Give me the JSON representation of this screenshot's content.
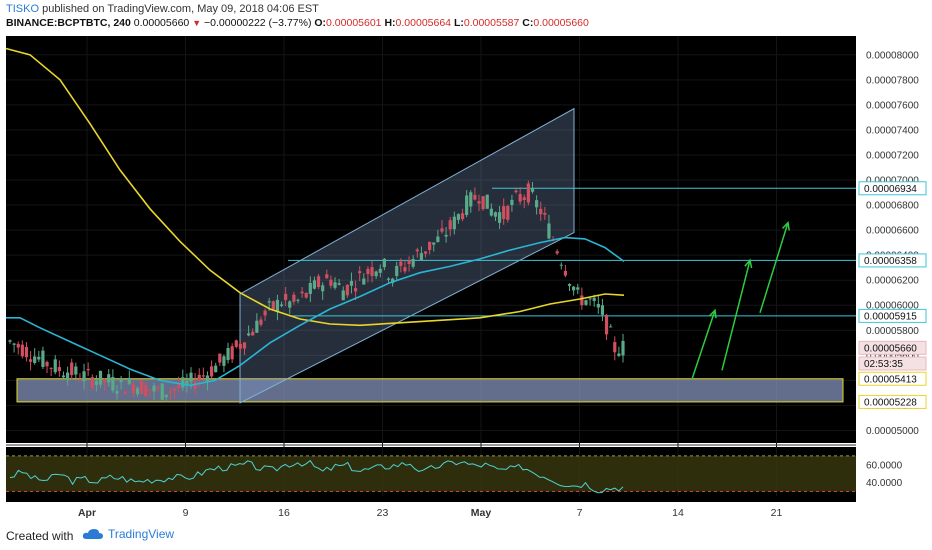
{
  "header": {
    "author": "TISKO",
    "published_text": "published on TradingView.com, May 09, 2018 04:06 EST",
    "symbol": "BINANCE:BCPTBTC, 240",
    "last_price": "0.00005660",
    "change": "−0.00000222 (−3.77%)",
    "o_label": "O:",
    "o_value": "0.00005601",
    "h_label": "H:",
    "h_value": "0.00005664",
    "l_label": "L:",
    "l_value": "0.00005587",
    "c_label": "C:",
    "c_value": "0.00005660"
  },
  "footer": {
    "created_with": "Created with",
    "brand": "TradingView"
  },
  "colors": {
    "background": "#000000",
    "up_candle": "#5aaa8a",
    "down_candle": "#d14f5e",
    "ma_fast": "#29b6d4",
    "ma_slow": "#e8d62a",
    "channel": "#7fb3d8",
    "level_line": "#3ec7d6",
    "zone": "#8c9cc8",
    "arrow": "#2ecc40",
    "rsi": "#4fd2d2"
  },
  "chart_data": {
    "type": "candlestick",
    "y_axis_ticks": [
      "0.00008000",
      "0.00007800",
      "0.00007600",
      "0.00007400",
      "0.00007200",
      "0.00007000",
      "0.00006800",
      "0.00006600",
      "0.00006400",
      "0.00006200",
      "0.00006000",
      "0.00005800",
      "0.00005600",
      "0.00005400",
      "0.00005200",
      "0.00005000"
    ],
    "ylim": [
      4.9e-05,
      8.15e-05
    ],
    "x_axis_ticks": [
      "Apr",
      "9",
      "16",
      "23",
      "May",
      "7",
      "14",
      "21"
    ],
    "price_labels": [
      {
        "label": "0.00006934",
        "value": 6.934e-05
      },
      {
        "label": "0.00006358",
        "value": 6.358e-05
      },
      {
        "label": "0.00005915",
        "value": 5.915e-05
      },
      {
        "label": "0.00005660",
        "value": 5.66e-05
      },
      {
        "label": "02:53:35",
        "value": 5.535e-05
      },
      {
        "label": "0.00005413",
        "value": 5.413e-05
      },
      {
        "label": "0.00005228",
        "value": 5.228e-05
      }
    ],
    "support_zone": [
      5.228e-05,
      5.413e-05
    ],
    "channel": {
      "lower_start": 5.22e-05,
      "lower_end": 6.58e-05,
      "upper_start": 6.09e-05,
      "upper_end": 7.57e-05
    },
    "series": [
      {
        "name": "price",
        "points": [
          5.71e-05,
          5.66e-05,
          5.6e-05,
          5.54e-05,
          5.49e-05,
          5.47e-05,
          5.43e-05,
          5.41e-05,
          5.39e-05,
          5.36e-05,
          5.37e-05,
          5.34e-05,
          5.31e-05,
          5.32e-05,
          5.35e-05,
          5.4e-05,
          5.46e-05,
          5.54e-05,
          5.62e-05,
          5.73e-05,
          5.84e-05,
          5.96e-05,
          6.03e-05,
          6.01e-05,
          6.08e-05,
          6.17e-05,
          6.21e-05,
          6.12e-05,
          6.19e-05,
          6.27e-05,
          6.33e-05,
          6.24e-05,
          6.31e-05,
          6.4e-05,
          6.47e-05,
          6.54e-05,
          6.66e-05,
          6.8e-05,
          6.89e-05,
          6.76e-05,
          6.72e-05,
          6.84e-05,
          6.9e-05,
          6.76e-05,
          6.53e-05,
          6.3e-05,
          6.07e-05,
          6.03e-05,
          5.94e-05,
          5.66e-05
        ]
      }
    ],
    "rsi": {
      "ticks": [
        "60.0000",
        "40.0000"
      ],
      "ylim": [
        25,
        80
      ],
      "last": 35,
      "points": [
        47,
        52,
        44,
        43,
        50,
        42,
        44,
        41,
        46,
        45,
        41,
        43,
        44,
        46,
        45,
        49,
        55,
        57,
        58,
        61,
        56,
        54,
        60,
        63,
        61,
        52,
        58,
        59,
        53,
        56,
        58,
        60,
        62,
        51,
        58,
        61,
        64,
        59,
        60,
        54,
        55,
        58,
        51,
        46,
        40,
        37,
        39,
        32,
        34,
        35
      ]
    }
  }
}
